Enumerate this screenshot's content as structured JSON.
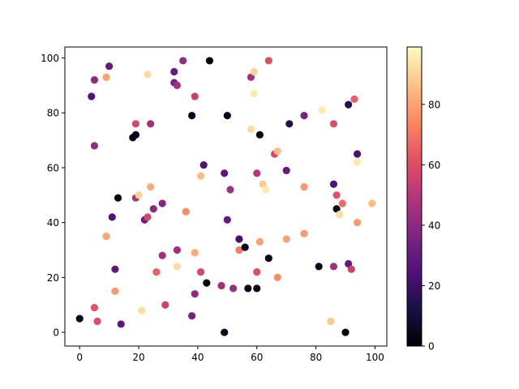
{
  "chart_data": {
    "type": "scatter",
    "title": "",
    "xlabel": "",
    "ylabel": "",
    "xlim": [
      -5,
      104
    ],
    "ylim": [
      -5,
      104
    ],
    "xticks": [
      "0",
      "20",
      "40",
      "60",
      "80",
      "100"
    ],
    "yticks": [
      "0",
      "20",
      "40",
      "60",
      "80",
      "100"
    ],
    "grid": false,
    "colormap": "magma",
    "colorbar": {
      "min": 0,
      "max": 99,
      "ticks": [
        "0",
        "20",
        "40",
        "60",
        "80"
      ]
    },
    "points": [
      {
        "x": 0,
        "y": 5,
        "c": 5
      },
      {
        "x": 5,
        "y": 9,
        "c": 62
      },
      {
        "x": 6,
        "y": 4,
        "c": 60
      },
      {
        "x": 4,
        "y": 86,
        "c": 25
      },
      {
        "x": 5,
        "y": 92,
        "c": 40
      },
      {
        "x": 5,
        "y": 68,
        "c": 42
      },
      {
        "x": 9,
        "y": 93,
        "c": 80
      },
      {
        "x": 10,
        "y": 97,
        "c": 30
      },
      {
        "x": 9,
        "y": 35,
        "c": 80
      },
      {
        "x": 11,
        "y": 42,
        "c": 25
      },
      {
        "x": 12,
        "y": 23,
        "c": 28
      },
      {
        "x": 12,
        "y": 15,
        "c": 78
      },
      {
        "x": 13,
        "y": 49,
        "c": 3
      },
      {
        "x": 14,
        "y": 3,
        "c": 28
      },
      {
        "x": 18,
        "y": 71,
        "c": 5
      },
      {
        "x": 19,
        "y": 72,
        "c": 2
      },
      {
        "x": 19,
        "y": 76,
        "c": 58
      },
      {
        "x": 19,
        "y": 49,
        "c": 47
      },
      {
        "x": 20,
        "y": 50,
        "c": 90
      },
      {
        "x": 21,
        "y": 8,
        "c": 92
      },
      {
        "x": 22,
        "y": 41,
        "c": 32
      },
      {
        "x": 23,
        "y": 42,
        "c": 58
      },
      {
        "x": 23,
        "y": 94,
        "c": 92
      },
      {
        "x": 24,
        "y": 76,
        "c": 45
      },
      {
        "x": 24,
        "y": 53,
        "c": 82
      },
      {
        "x": 25,
        "y": 45,
        "c": 40
      },
      {
        "x": 26,
        "y": 22,
        "c": 65
      },
      {
        "x": 28,
        "y": 47,
        "c": 38
      },
      {
        "x": 28,
        "y": 28,
        "c": 45
      },
      {
        "x": 29,
        "y": 10,
        "c": 55
      },
      {
        "x": 32,
        "y": 95,
        "c": 30
      },
      {
        "x": 32,
        "y": 91,
        "c": 35
      },
      {
        "x": 33,
        "y": 90,
        "c": 45
      },
      {
        "x": 33,
        "y": 24,
        "c": 92
      },
      {
        "x": 33,
        "y": 30,
        "c": 45
      },
      {
        "x": 35,
        "y": 99,
        "c": 42
      },
      {
        "x": 36,
        "y": 44,
        "c": 75
      },
      {
        "x": 38,
        "y": 79,
        "c": 6
      },
      {
        "x": 38,
        "y": 6,
        "c": 35
      },
      {
        "x": 39,
        "y": 86,
        "c": 55
      },
      {
        "x": 39,
        "y": 29,
        "c": 82
      },
      {
        "x": 39,
        "y": 14,
        "c": 40
      },
      {
        "x": 41,
        "y": 57,
        "c": 85
      },
      {
        "x": 41,
        "y": 22,
        "c": 58
      },
      {
        "x": 42,
        "y": 61,
        "c": 25
      },
      {
        "x": 43,
        "y": 18,
        "c": 4
      },
      {
        "x": 44,
        "y": 99,
        "c": 0
      },
      {
        "x": 48,
        "y": 17,
        "c": 45
      },
      {
        "x": 49,
        "y": 58,
        "c": 28
      },
      {
        "x": 49,
        "y": 0,
        "c": 5
      },
      {
        "x": 50,
        "y": 79,
        "c": 3
      },
      {
        "x": 50,
        "y": 41,
        "c": 30
      },
      {
        "x": 51,
        "y": 52,
        "c": 45
      },
      {
        "x": 52,
        "y": 16,
        "c": 42
      },
      {
        "x": 54,
        "y": 34,
        "c": 22
      },
      {
        "x": 54,
        "y": 30,
        "c": 72
      },
      {
        "x": 56,
        "y": 31,
        "c": 4
      },
      {
        "x": 57,
        "y": 16,
        "c": 3
      },
      {
        "x": 58,
        "y": 93,
        "c": 45
      },
      {
        "x": 58,
        "y": 74,
        "c": 92
      },
      {
        "x": 59,
        "y": 87,
        "c": 95
      },
      {
        "x": 59,
        "y": 95,
        "c": 90
      },
      {
        "x": 60,
        "y": 58,
        "c": 50
      },
      {
        "x": 60,
        "y": 22,
        "c": 60
      },
      {
        "x": 60,
        "y": 16,
        "c": 4
      },
      {
        "x": 61,
        "y": 72,
        "c": 3
      },
      {
        "x": 61,
        "y": 33,
        "c": 80
      },
      {
        "x": 62,
        "y": 54,
        "c": 88
      },
      {
        "x": 63,
        "y": 52,
        "c": 95
      },
      {
        "x": 64,
        "y": 99,
        "c": 60
      },
      {
        "x": 64,
        "y": 27,
        "c": 4
      },
      {
        "x": 66,
        "y": 65,
        "c": 58
      },
      {
        "x": 67,
        "y": 66,
        "c": 85
      },
      {
        "x": 67,
        "y": 20,
        "c": 75
      },
      {
        "x": 70,
        "y": 59,
        "c": 30
      },
      {
        "x": 70,
        "y": 34,
        "c": 80
      },
      {
        "x": 71,
        "y": 76,
        "c": 15
      },
      {
        "x": 76,
        "y": 79,
        "c": 35
      },
      {
        "x": 76,
        "y": 53,
        "c": 78
      },
      {
        "x": 76,
        "y": 36,
        "c": 78
      },
      {
        "x": 81,
        "y": 24,
        "c": 4
      },
      {
        "x": 82,
        "y": 81,
        "c": 95
      },
      {
        "x": 85,
        "y": 4,
        "c": 88
      },
      {
        "x": 86,
        "y": 76,
        "c": 60
      },
      {
        "x": 86,
        "y": 54,
        "c": 25
      },
      {
        "x": 86,
        "y": 24,
        "c": 45
      },
      {
        "x": 87,
        "y": 50,
        "c": 62
      },
      {
        "x": 87,
        "y": 45,
        "c": 3
      },
      {
        "x": 88,
        "y": 43,
        "c": 92
      },
      {
        "x": 89,
        "y": 47,
        "c": 68
      },
      {
        "x": 90,
        "y": 0,
        "c": 3
      },
      {
        "x": 91,
        "y": 83,
        "c": 15
      },
      {
        "x": 91,
        "y": 25,
        "c": 30
      },
      {
        "x": 92,
        "y": 23,
        "c": 55
      },
      {
        "x": 93,
        "y": 85,
        "c": 65
      },
      {
        "x": 94,
        "y": 65,
        "c": 22
      },
      {
        "x": 94,
        "y": 62,
        "c": 95
      },
      {
        "x": 94,
        "y": 40,
        "c": 78
      },
      {
        "x": 99,
        "y": 47,
        "c": 85
      }
    ]
  }
}
